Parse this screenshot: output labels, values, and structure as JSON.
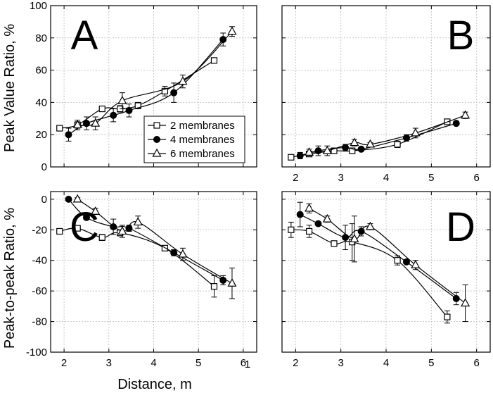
{
  "chart_data": {
    "type": "line",
    "xlabel": "Distance, m",
    "series_names": [
      "2 membranes",
      "4 membranes",
      "6 membranes"
    ],
    "series_markers": [
      "open-square",
      "filled-circle",
      "open-triangle"
    ],
    "panels": [
      {
        "letter": "A",
        "ylabel": "Peak Value Ratio, %",
        "xlim": [
          1.7,
          6.3
        ],
        "ylim": [
          0,
          100
        ],
        "xticks": [
          "2",
          "3",
          "4",
          "5",
          "6"
        ],
        "yticks": [
          "0",
          "20",
          "40",
          "60",
          "80",
          "100"
        ],
        "show_xtick_labels": false,
        "show_ytick_labels": true,
        "legend": "center-right",
        "series": [
          {
            "name": "2 membranes",
            "marker": "open-square",
            "x": [
              1.9,
              2.3,
              2.85,
              3.25,
              3.65,
              4.25,
              5.35
            ],
            "y": [
              24,
              26,
              36,
              36,
              38,
              47,
              66
            ],
            "err": [
              1,
              2,
              1,
              2,
              2,
              3,
              1
            ]
          },
          {
            "name": "4 membranes",
            "marker": "filled-circle",
            "x": [
              2.1,
              2.5,
              3.1,
              3.45,
              4.45,
              5.55
            ],
            "y": [
              20,
              27,
              32,
              35,
              46,
              79
            ],
            "err": [
              4,
              4,
              4,
              4,
              6,
              4
            ]
          },
          {
            "name": "6 membranes",
            "marker": "open-triangle",
            "x": [
              2.3,
              2.7,
              3.3,
              4.65,
              5.75
            ],
            "y": [
              26,
              27,
              41,
              53,
              84
            ],
            "err": [
              3,
              4,
              5,
              4,
              3
            ]
          }
        ]
      },
      {
        "letter": "B",
        "ylabel": "",
        "xlim": [
          1.7,
          6.3
        ],
        "ylim": [
          0,
          100
        ],
        "xticks": [
          "2",
          "3",
          "4",
          "5",
          "6"
        ],
        "yticks": [
          "0",
          "20",
          "40",
          "60",
          "80",
          "100"
        ],
        "show_xtick_labels": true,
        "show_ytick_labels": false,
        "series": [
          {
            "name": "2 membranes",
            "marker": "open-square",
            "x": [
              1.9,
              2.3,
              2.85,
              3.25,
              4.25,
              5.35
            ],
            "y": [
              6,
              8,
              10,
              10,
              14,
              28
            ],
            "err": [
              1,
              1,
              1,
              1,
              2,
              1
            ]
          },
          {
            "name": "4 membranes",
            "marker": "filled-circle",
            "x": [
              2.1,
              2.5,
              3.1,
              3.45,
              4.45,
              5.55
            ],
            "y": [
              7,
              10,
              12,
              11,
              18,
              27
            ],
            "err": [
              2,
              3,
              2,
              1,
              2,
              1
            ]
          },
          {
            "name": "6 membranes",
            "marker": "open-triangle",
            "x": [
              2.3,
              2.7,
              3.3,
              3.65,
              4.65,
              5.75
            ],
            "y": [
              9,
              10,
              15,
              14,
              21,
              32
            ],
            "err": [
              2,
              3,
              2,
              1,
              3,
              2
            ]
          }
        ]
      },
      {
        "letter": "C",
        "ylabel": "",
        "xlim": [
          1.7,
          6.3
        ],
        "ylim": [
          -100,
          5
        ],
        "xticks": [
          "2",
          "3",
          "4",
          "5",
          "6"
        ],
        "yticks": [
          "0",
          "-20",
          "-40",
          "-60",
          "-80",
          "-100"
        ],
        "ytick_values": [
          0,
          -20,
          -40,
          -60,
          -80,
          -100
        ],
        "show_xtick_labels": true,
        "show_ytick_labels": true,
        "series": [
          {
            "name": "2 membranes",
            "marker": "open-square",
            "x": [
              1.9,
              2.3,
              2.85,
              3.25,
              4.25,
              5.35
            ],
            "y": [
              -21,
              -19,
              -25,
              -22,
              -32,
              -57
            ],
            "err": [
              1,
              1,
              2,
              2,
              1,
              7
            ]
          },
          {
            "name": "4 membranes",
            "marker": "filled-circle",
            "x": [
              2.1,
              2.5,
              3.1,
              3.45,
              4.45,
              5.55
            ],
            "y": [
              0,
              -12,
              -18,
              -19,
              -35,
              -53
            ],
            "err": [
              1,
              1,
              5,
              2,
              2,
              3
            ]
          },
          {
            "name": "6 membranes",
            "marker": "open-triangle",
            "x": [
              2.3,
              2.7,
              3.3,
              3.65,
              4.65,
              5.75
            ],
            "y": [
              0,
              -8,
              -21,
              -15,
              -36,
              -55
            ],
            "err": [
              1,
              2,
              4,
              4,
              4,
              10
            ]
          }
        ]
      },
      {
        "letter": "D",
        "ylabel": "",
        "xlim": [
          1.7,
          6.3
        ],
        "ylim": [
          -100,
          5
        ],
        "xticks": [
          "2",
          "3",
          "4",
          "5",
          "6"
        ],
        "yticks": [
          "0",
          "-20",
          "-40",
          "-60",
          "-80",
          "-100"
        ],
        "show_xtick_labels": true,
        "show_ytick_labels": false,
        "series": [
          {
            "name": "2 membranes",
            "marker": "open-square",
            "x": [
              1.9,
              2.3,
              2.85,
              3.25,
              4.25,
              5.35
            ],
            "y": [
              -20,
              -21,
              -29,
              -28,
              -40,
              -77
            ],
            "err": [
              5,
              4,
              1,
              12,
              3,
              4
            ]
          },
          {
            "name": "4 membranes",
            "marker": "filled-circle",
            "x": [
              2.1,
              2.5,
              3.1,
              3.45,
              4.45,
              5.55
            ],
            "y": [
              -10,
              -16,
              -25,
              -21,
              -41,
              -65
            ],
            "err": [
              8,
              1,
              8,
              3,
              1,
              4
            ]
          },
          {
            "name": "6 membranes",
            "marker": "open-triangle",
            "x": [
              2.3,
              2.7,
              3.3,
              3.65,
              4.65,
              5.75
            ],
            "y": [
              -6,
              -13,
              -26,
              -18,
              -43,
              -68
            ],
            "err": [
              3,
              2,
              15,
              2,
              3,
              12
            ]
          }
        ]
      }
    ],
    "bottom_ylabel": "Peak-to-peak Ratio, %",
    "stray_tick_label": "1"
  }
}
